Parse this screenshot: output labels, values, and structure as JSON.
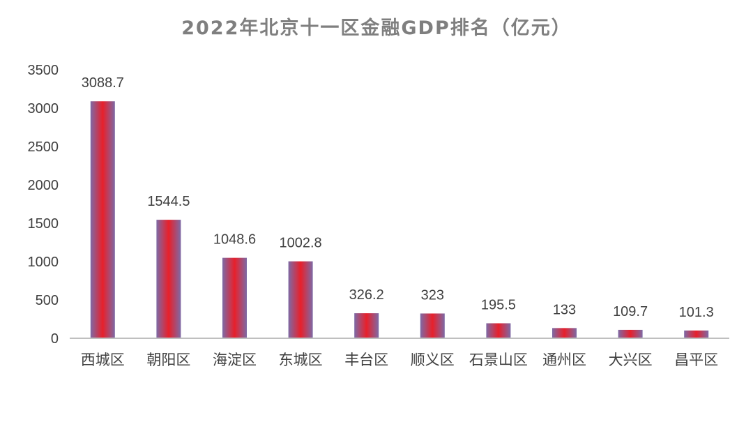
{
  "chart_data": {
    "type": "bar",
    "title": "2022年北京十一区金融GDP排名（亿元）",
    "categories": [
      "西城区",
      "朝阳区",
      "海淀区",
      "东城区",
      "丰台区",
      "顺义区",
      "石景山区",
      "通州区",
      "大兴区",
      "昌平区"
    ],
    "values": [
      3088.7,
      1544.5,
      1048.6,
      1002.8,
      326.2,
      323,
      195.5,
      133,
      109.7,
      101.3
    ],
    "value_labels": [
      "3088.7",
      "1544.5",
      "1048.6",
      "1002.8",
      "326.2",
      "323",
      "195.5",
      "133",
      "109.7",
      "101.3"
    ],
    "yticks": [
      0,
      500,
      1000,
      1500,
      2000,
      2500,
      3000,
      3500
    ],
    "ylim": [
      0,
      3500
    ],
    "xlabel": "",
    "ylabel": "",
    "grid": false,
    "legend": "none",
    "colors": {
      "bar_center": "#e8202a",
      "bar_edge": "#7d6aa6",
      "title": "#7f7f7f",
      "text": "#404040",
      "axis": "#bfbfbf"
    }
  }
}
